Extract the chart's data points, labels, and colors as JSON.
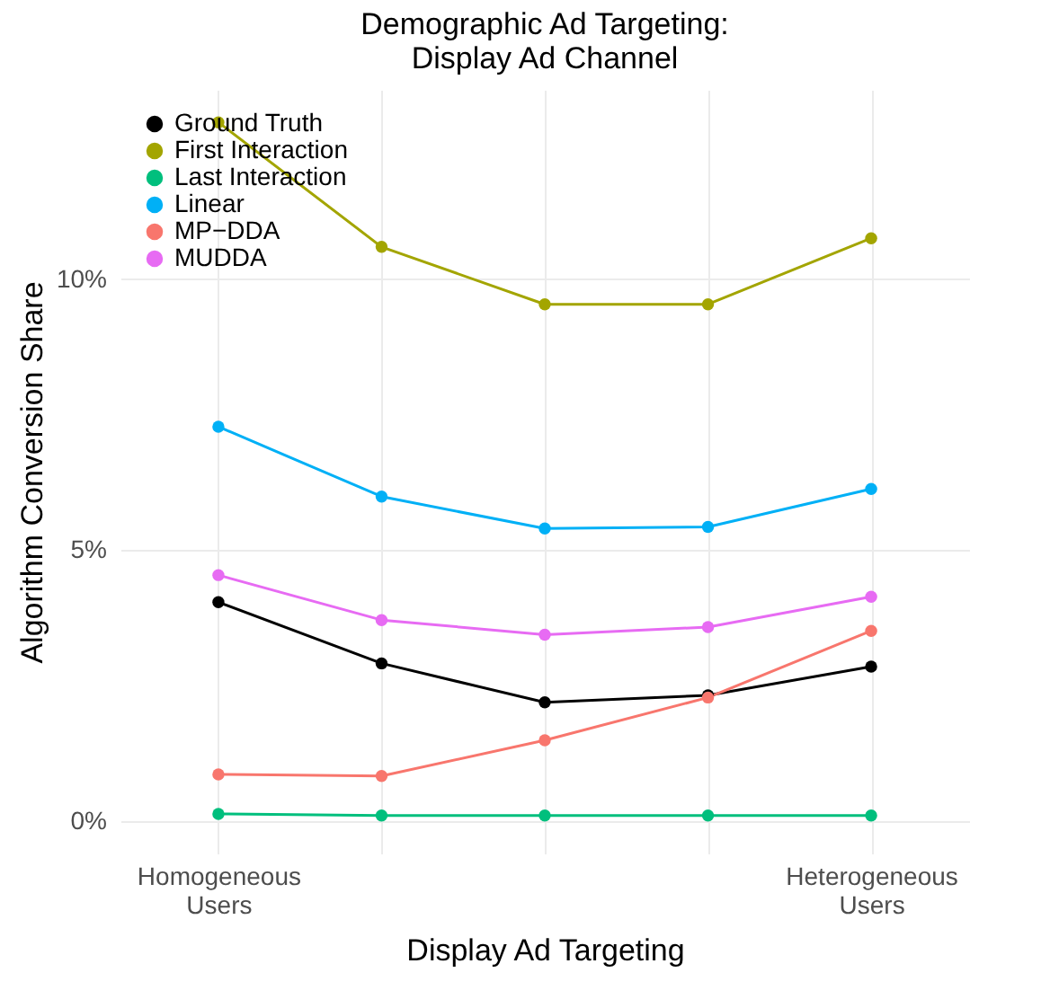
{
  "chart_data": {
    "type": "line",
    "title": "Demographic Ad Targeting:\nDisplay Ad Channel",
    "xlabel": "Display Ad Targeting",
    "ylabel": "Algorithm Conversion Share",
    "categories": [
      "Homogeneous\nUsers",
      null,
      null,
      null,
      "Heterogeneous\nUsers"
    ],
    "series": [
      {
        "name": "Ground Truth",
        "color": "#000000",
        "values": [
          4.04,
          2.91,
          2.19,
          2.32,
          2.85
        ]
      },
      {
        "name": "First Interaction",
        "color": "#a3a500",
        "values": [
          12.9,
          10.6,
          9.54,
          9.54,
          10.76
        ]
      },
      {
        "name": "Last Interaction",
        "color": "#00bf7d",
        "values": [
          0.13,
          0.1,
          0.1,
          0.1,
          0.1
        ]
      },
      {
        "name": "Linear",
        "color": "#00b0f6",
        "values": [
          7.28,
          5.99,
          5.4,
          5.43,
          6.13
        ]
      },
      {
        "name": "MP−DDA",
        "color": "#f8766d",
        "values": [
          0.86,
          0.83,
          1.49,
          2.28,
          3.51
        ]
      },
      {
        "name": "MUDDA",
        "color": "#e76bf3",
        "values": [
          4.54,
          3.71,
          3.44,
          3.58,
          4.14
        ]
      }
    ],
    "ylim": [
      -0.6,
      13.5
    ],
    "yticks": [
      {
        "value": 0,
        "label": "0%"
      },
      {
        "value": 5,
        "label": "5%"
      },
      {
        "value": 10,
        "label": "10%"
      }
    ],
    "grid": true,
    "legend": "top left",
    "marker": "circle",
    "line_style": "solid"
  }
}
